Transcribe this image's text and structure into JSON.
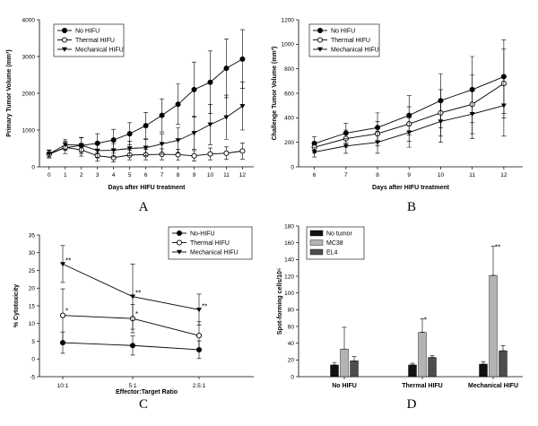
{
  "chart_data": [
    {
      "type": "line",
      "panel_label": "A",
      "xlabel": "Days after HIFU treatment",
      "ylabel": "Primary Tumor Volume (mm³)",
      "x": [
        0,
        1,
        2,
        3,
        4,
        5,
        6,
        7,
        8,
        9,
        10,
        11,
        12
      ],
      "xticks": [
        "0",
        "1",
        "2",
        "3",
        "4",
        "5",
        "6",
        "7",
        "8",
        "9",
        "10",
        "11",
        "12"
      ],
      "xlim": [
        -0.6,
        12.7
      ],
      "ylim": [
        0,
        4000
      ],
      "yticks": [
        0,
        1000,
        2000,
        3000,
        4000
      ],
      "series": [
        {
          "name": "No HIFU",
          "marker": "filled-circle",
          "values": [
            350,
            520,
            580,
            640,
            730,
            900,
            1120,
            1400,
            1700,
            2100,
            2300,
            2680,
            2930
          ],
          "errors": [
            110,
            160,
            220,
            260,
            290,
            300,
            360,
            450,
            550,
            750,
            850,
            800,
            800
          ]
        },
        {
          "name": "Thermal HIFU",
          "marker": "open-circle",
          "values": [
            340,
            530,
            460,
            300,
            250,
            320,
            330,
            340,
            330,
            300,
            350,
            370,
            430
          ],
          "errors": [
            100,
            170,
            170,
            150,
            120,
            130,
            140,
            150,
            150,
            140,
            160,
            170,
            220
          ]
        },
        {
          "name": "Mechanical HIFU",
          "marker": "triangle",
          "values": [
            350,
            600,
            590,
            440,
            450,
            500,
            520,
            620,
            720,
            920,
            1150,
            1350,
            1650
          ],
          "errors": [
            100,
            150,
            200,
            180,
            180,
            200,
            220,
            280,
            350,
            450,
            550,
            600,
            650
          ]
        }
      ]
    },
    {
      "type": "line",
      "panel_label": "B",
      "xlabel": "Days after HIFU treatment",
      "ylabel": "Challenge Tumor Volume (mm³)",
      "x": [
        6,
        7,
        8,
        9,
        10,
        11,
        12
      ],
      "xticks": [
        "6",
        "7",
        "8",
        "9",
        "10",
        "11",
        "12"
      ],
      "xlim": [
        5.5,
        12.6
      ],
      "ylim": [
        0,
        1200
      ],
      "yticks": [
        0,
        200,
        400,
        600,
        800,
        1000,
        1200
      ],
      "series": [
        {
          "name": "No HIFU",
          "marker": "filled-circle",
          "values": [
            190,
            275,
            320,
            420,
            540,
            630,
            735
          ],
          "errors": [
            55,
            80,
            120,
            160,
            220,
            270,
            300
          ]
        },
        {
          "name": "Thermal HIFU",
          "marker": "open-circle",
          "values": [
            160,
            230,
            270,
            350,
            440,
            510,
            680
          ],
          "errors": [
            45,
            70,
            100,
            140,
            190,
            240,
            280
          ]
        },
        {
          "name": "Mechanical HIFU",
          "marker": "triangle",
          "values": [
            120,
            170,
            200,
            280,
            370,
            430,
            500
          ],
          "errors": [
            40,
            60,
            90,
            120,
            170,
            200,
            250
          ]
        }
      ]
    },
    {
      "type": "line",
      "panel_label": "C",
      "xlabel": "Effector:Target Ratio",
      "ylabel": "% Cytotoxicity",
      "categories": [
        "10:1",
        "5:1",
        "2.5:1"
      ],
      "ylim": [
        -5,
        35
      ],
      "yticks": [
        -5,
        0,
        5,
        10,
        15,
        20,
        25,
        30,
        35
      ],
      "series": [
        {
          "name": "No-HIFU",
          "marker": "filled-circle",
          "values": [
            4.6,
            3.8,
            2.6
          ],
          "errors": [
            3,
            2.7,
            2.5
          ],
          "annotations": [
            "",
            "",
            ""
          ]
        },
        {
          "name": "Thermal HIFU",
          "marker": "open-circle",
          "values": [
            12.3,
            11.4,
            6.6
          ],
          "errors": [
            7.5,
            4,
            4
          ],
          "annotations": [
            "*",
            "*",
            ""
          ]
        },
        {
          "name": "Mechanical HIFU",
          "marker": "triangle",
          "values": [
            26.8,
            17.6,
            13.9
          ],
          "errors": [
            5.2,
            9.2,
            4.4
          ],
          "annotations": [
            "**",
            "**",
            "**"
          ]
        }
      ]
    },
    {
      "type": "bar",
      "panel_label": "D",
      "ylabel": "Spot-forming cells/10⁵",
      "categories": [
        "No HIFU",
        "Thermal HIFU",
        "Mechanical HIFU"
      ],
      "ylim": [
        0,
        180
      ],
      "yticks": [
        0,
        20,
        40,
        60,
        80,
        100,
        120,
        140,
        160,
        180
      ],
      "series": [
        {
          "name": "No tumor",
          "color": "#111111",
          "values": [
            14,
            14,
            15
          ],
          "errors": [
            3,
            2,
            3
          ],
          "annotations": [
            "",
            "",
            ""
          ]
        },
        {
          "name": "MC38",
          "color": "#b3b3b3",
          "values": [
            33,
            53,
            121
          ],
          "errors": [
            26,
            16,
            35
          ],
          "annotations": [
            "",
            "*",
            "**"
          ]
        },
        {
          "name": "EL4",
          "color": "#4d4d4d",
          "values": [
            19,
            23,
            31
          ],
          "errors": [
            5,
            2,
            6
          ],
          "annotations": [
            "",
            "",
            ""
          ]
        }
      ]
    }
  ]
}
